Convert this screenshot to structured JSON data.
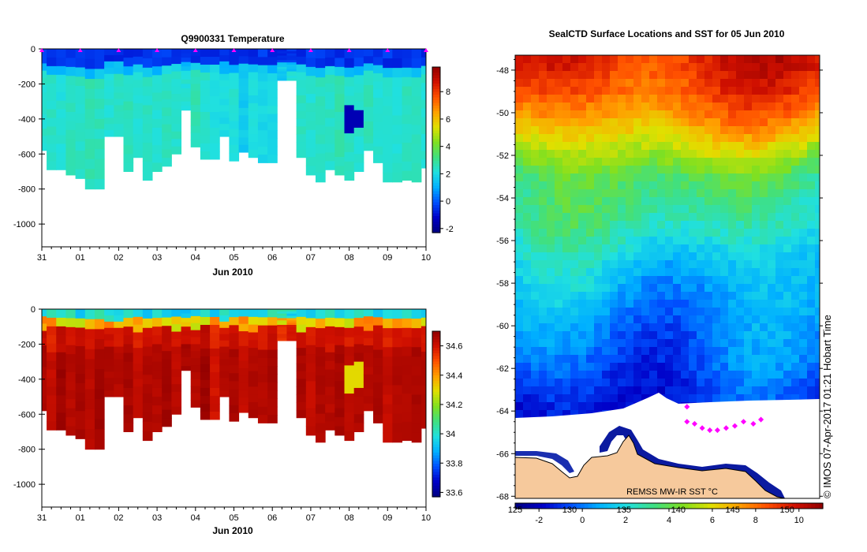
{
  "colors": {
    "jet": [
      "#000080",
      "#0000c8",
      "#0050ff",
      "#00b0ff",
      "#20e0e0",
      "#40e080",
      "#80e020",
      "#e0e000",
      "#ffa000",
      "#ff5000",
      "#d01000",
      "#900000"
    ],
    "land": "#f6c99c",
    "marker": "#ff00ff"
  },
  "chart_data": [
    {
      "id": "temperature",
      "type": "heatmap",
      "title": "Q9900331  Temperature",
      "xlabel": "Jun 2010",
      "x_ticks": [
        "31",
        "01",
        "02",
        "03",
        "04",
        "05",
        "06",
        "07",
        "08",
        "09",
        "10"
      ],
      "ylim": [
        -1130,
        0
      ],
      "y_ticks": [
        0,
        -200,
        -400,
        -600,
        -800,
        -1000
      ],
      "y_tick_labels": [
        "0",
        "-200",
        "-400",
        "-600",
        "-800",
        "-1000"
      ],
      "colorbar": {
        "min": -2.3,
        "max": 9.8,
        "ticks": [
          -2,
          0,
          2,
          4,
          6,
          8
        ],
        "tick_labels": [
          "-2",
          "0",
          "2",
          "4",
          "6",
          "8"
        ]
      },
      "profile_day_offsets": [
        0,
        0.25,
        0.5,
        0.75,
        1,
        1.25,
        1.5,
        1.75,
        2,
        2.25,
        2.5,
        2.75,
        3,
        3.25,
        3.5,
        3.75,
        4,
        4.25,
        4.5,
        4.75,
        5,
        5.25,
        5.5,
        5.75,
        6,
        6.25,
        6.5,
        6.75,
        7,
        7.25,
        7.5,
        7.75,
        8,
        8.25,
        8.5,
        8.75,
        9,
        9.25,
        9.5,
        9.75,
        10
      ],
      "profile_max_depths": [
        580,
        690,
        690,
        720,
        740,
        800,
        800,
        500,
        500,
        700,
        620,
        750,
        700,
        670,
        600,
        350,
        560,
        630,
        630,
        500,
        640,
        590,
        620,
        650,
        650,
        180,
        180,
        620,
        720,
        760,
        690,
        720,
        750,
        700,
        580,
        650,
        760,
        760,
        750,
        760,
        680
      ],
      "surface_value": -0.8,
      "upper_value": 1.0,
      "deep_values": [
        2.3,
        2.4,
        2.2,
        2.5,
        2.4,
        2.6,
        2.5,
        2.3,
        2.4,
        2.5,
        2.2,
        2.4,
        2.3,
        2.5,
        2.4,
        2.2,
        2.6,
        2.3,
        2.1,
        2.0,
        2.2,
        1.6,
        2.0,
        1.9,
        2.0,
        1.5,
        2.2,
        2.4,
        2.3,
        2.5,
        2.4,
        2.6,
        2.4,
        2.3,
        2.5,
        2.2,
        2.4,
        2.3,
        2.5,
        2.4,
        2.3
      ],
      "anomaly": {
        "day": 8.1,
        "depth_top": 340,
        "depth_bottom": 460,
        "value": -1.5
      },
      "profile_marker_days": [
        0,
        1,
        2,
        3,
        4,
        5,
        6,
        7,
        8,
        9,
        10
      ]
    },
    {
      "id": "salinity",
      "type": "heatmap",
      "title": "",
      "xlabel": "Jun 2010",
      "x_ticks": [
        "31",
        "01",
        "02",
        "03",
        "04",
        "05",
        "06",
        "07",
        "08",
        "09",
        "10"
      ],
      "ylim": [
        -1130,
        0
      ],
      "y_ticks": [
        0,
        -200,
        -400,
        -600,
        -800,
        -1000
      ],
      "y_tick_labels": [
        "0",
        "-200",
        "-400",
        "-600",
        "-800",
        "-1000"
      ],
      "colorbar": {
        "min": 33.57,
        "max": 34.7,
        "ticks": [
          33.6,
          33.8,
          34,
          34.2,
          34.4,
          34.6
        ],
        "tick_labels": [
          "33.6",
          "33.8",
          "34",
          "34.2",
          "34.4",
          "34.6"
        ]
      },
      "surface_value": 33.9,
      "deep_values": [
        34.66,
        34.62,
        34.68,
        34.64,
        34.66,
        34.63,
        34.67,
        34.65,
        34.64,
        34.66,
        34.62,
        34.65,
        34.64,
        34.67,
        34.63,
        34.66,
        34.64,
        34.68,
        34.6,
        34.64,
        34.66,
        34.62,
        34.65,
        34.64,
        34.66,
        34.6,
        34.64,
        34.66,
        34.62,
        34.65,
        34.64,
        34.66,
        34.63,
        34.65,
        34.64,
        34.66,
        34.62,
        34.65,
        34.64,
        34.66,
        34.64
      ],
      "anomaly": {
        "day": 8.1,
        "depth_top": 320,
        "depth_bottom": 460,
        "value": 34.3
      }
    },
    {
      "id": "sst_map",
      "type": "heatmap",
      "title": "SealCTD Surface Locations and SST for 05 Jun 2010",
      "ylim": [
        -68.1,
        -47.3
      ],
      "y_ticks": [
        -48,
        -50,
        -52,
        -54,
        -56,
        -58,
        -60,
        -62,
        -64,
        -66,
        -68
      ],
      "y_tick_labels": [
        "-48",
        "-50",
        "-52",
        "-54",
        "-56",
        "-58",
        "-60",
        "-62",
        "-64",
        "-66",
        "-68"
      ],
      "xlim": [
        125,
        153
      ],
      "lon_ticks": [
        125,
        130,
        135,
        140,
        145,
        150
      ],
      "lon_tick_labels": [
        "125",
        "130",
        "135",
        "140",
        "145",
        "150"
      ],
      "colorbar": {
        "min": -3.1,
        "max": 11.1,
        "ticks": [
          -2,
          0,
          2,
          4,
          6,
          8,
          10
        ],
        "tick_labels": [
          "-2",
          "0",
          "2",
          "4",
          "6",
          "8",
          "10"
        ]
      },
      "sst_by_latitude": [
        [
          -47.3,
          9.6
        ],
        [
          -48,
          9.3
        ],
        [
          -49,
          8.6
        ],
        [
          -50,
          7.6
        ],
        [
          -51,
          6.4
        ],
        [
          -52,
          5.0
        ],
        [
          -53,
          3.7
        ],
        [
          -54,
          3.2
        ],
        [
          -55,
          2.8
        ],
        [
          -56,
          2.2
        ],
        [
          -57,
          1.5
        ],
        [
          -58,
          1.1
        ],
        [
          -59,
          0.7
        ],
        [
          -60,
          0.3
        ],
        [
          -61,
          0.0
        ],
        [
          -62,
          -0.4
        ],
        [
          -63,
          -0.9
        ],
        [
          -64,
          -1.3
        ]
      ],
      "ice_edge_latitude": -64.2,
      "coast_latitude": -66.8,
      "seal_locations": [
        [
          140.8,
          -63.8
        ],
        [
          140.8,
          -64.5
        ],
        [
          141.5,
          -64.6
        ],
        [
          142.2,
          -64.8
        ],
        [
          142.9,
          -64.9
        ],
        [
          143.6,
          -64.9
        ],
        [
          144.4,
          -64.8
        ],
        [
          145.2,
          -64.7
        ],
        [
          146.0,
          -64.5
        ],
        [
          146.9,
          -64.6
        ],
        [
          147.6,
          -64.4
        ]
      ],
      "product_label": "REMSS MW-IR SST °C",
      "credit": "© IMOS 07-Apr-2017 01:21 Hobart Time"
    }
  ]
}
